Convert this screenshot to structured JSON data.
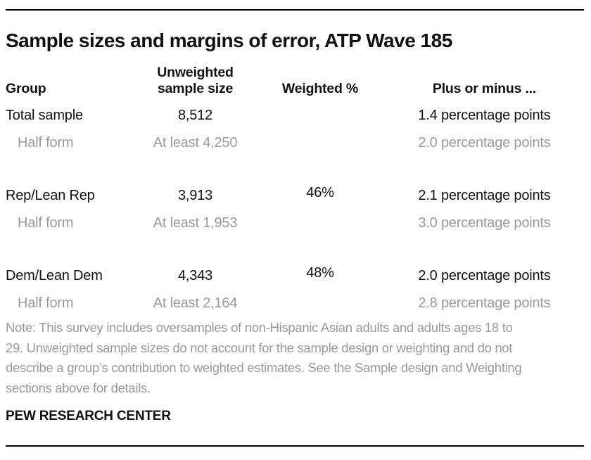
{
  "page": {
    "title": "Sample sizes and margins of error, ATP Wave 185",
    "source": "PEW RESEARCH CENTER"
  },
  "colors": {
    "text": "#111111",
    "muted": "#9a9a9a",
    "rule": "#000000"
  },
  "table": {
    "header": {
      "group": "Group",
      "unweighted_line1": "Unweighted",
      "unweighted_line2": "sample size",
      "weighted": "Weighted %",
      "plus_minus": "Plus or minus ..."
    },
    "rows": [
      {
        "group": "Total sample",
        "unweighted": "8,512",
        "weighted": "",
        "moe": "1.4 percentage points"
      },
      {
        "group": "Half form",
        "unweighted": "At least 4,250",
        "weighted": "",
        "moe": "2.0 percentage points"
      },
      {
        "group": "Rep/Lean Rep",
        "unweighted": "3,913",
        "weighted": "46%",
        "moe": "2.1 percentage points"
      },
      {
        "group": "Half form",
        "unweighted": "At least 1,953",
        "weighted": "",
        "moe": "3.0 percentage points"
      },
      {
        "group": "Dem/Lean Dem",
        "unweighted": "4,343",
        "weighted": "48%",
        "moe": "2.0 percentage points"
      },
      {
        "group": "Half form",
        "unweighted": "At least 2,164",
        "weighted": "",
        "moe": "2.8 percentage points"
      }
    ]
  },
  "note": {
    "lines": [
      "Note: This survey includes oversamples of non-Hispanic Asian adults and adults ages 18 to",
      "29. Unweighted sample sizes do not account for the sample design or weighting and do not",
      "describe a group’s contribution to weighted estimates. See the Sample design and Weighting",
      "sections above for details."
    ]
  },
  "chart_data": {
    "type": "table",
    "title": "Sample sizes and margins of error, ATP Wave 185",
    "columns": [
      "Group",
      "Unweighted sample size",
      "Weighted %",
      "Plus or minus ..."
    ],
    "rows": [
      [
        "Total sample",
        "8,512",
        "",
        "1.4 percentage points"
      ],
      [
        "Half form",
        "At least 4,250",
        "",
        "2.0 percentage points"
      ],
      [
        "Rep/Lean Rep",
        "3,913",
        "46%",
        "2.1 percentage points"
      ],
      [
        "Half form",
        "At least 1,953",
        "",
        "3.0 percentage points"
      ],
      [
        "Dem/Lean Dem",
        "4,343",
        "48%",
        "2.0 percentage points"
      ],
      [
        "Half form",
        "At least 2,164",
        "",
        "2.8 percentage points"
      ]
    ],
    "weighted_pct": {
      "Rep/Lean Rep": 46,
      "Dem/Lean Dem": 48
    },
    "note": "Note: This survey includes oversamples of non-Hispanic Asian adults and adults ages 18 to 29. Unweighted sample sizes do not account for the sample design or weighting and do not describe a group’s contribution to weighted estimates. See the Sample design and Weighting sections above for details.",
    "source": "PEW RESEARCH CENTER"
  }
}
